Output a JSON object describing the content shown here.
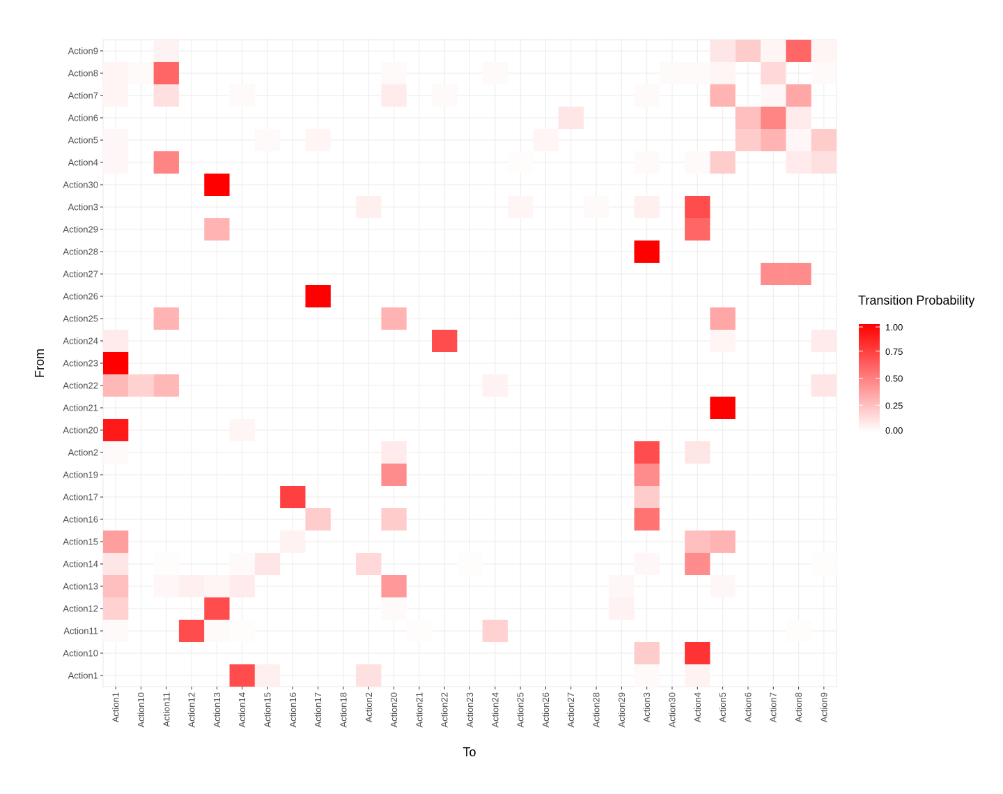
{
  "chart_data": {
    "type": "heatmap",
    "title": "",
    "xlabel": "To",
    "ylabel": "From",
    "x_categories": [
      "Action1",
      "Action10",
      "Action11",
      "Action12",
      "Action13",
      "Action14",
      "Action15",
      "Action16",
      "Action17",
      "Action18",
      "Action2",
      "Action20",
      "Action21",
      "Action22",
      "Action23",
      "Action24",
      "Action25",
      "Action26",
      "Action27",
      "Action28",
      "Action29",
      "Action3",
      "Action30",
      "Action4",
      "Action5",
      "Action6",
      "Action7",
      "Action8",
      "Action9"
    ],
    "y_categories": [
      "Action1",
      "Action10",
      "Action11",
      "Action12",
      "Action13",
      "Action14",
      "Action15",
      "Action16",
      "Action17",
      "Action19",
      "Action2",
      "Action20",
      "Action21",
      "Action22",
      "Action23",
      "Action24",
      "Action25",
      "Action26",
      "Action27",
      "Action28",
      "Action29",
      "Action3",
      "Action30",
      "Action4",
      "Action5",
      "Action6",
      "Action7",
      "Action8",
      "Action9"
    ],
    "cells": [
      {
        "from": "Action9",
        "to": "Action11",
        "value": 0.05
      },
      {
        "from": "Action9",
        "to": "Action5",
        "value": 0.1
      },
      {
        "from": "Action9",
        "to": "Action6",
        "value": 0.2
      },
      {
        "from": "Action9",
        "to": "Action7",
        "value": 0.04
      },
      {
        "from": "Action9",
        "to": "Action8",
        "value": 0.6
      },
      {
        "from": "Action9",
        "to": "Action9",
        "value": 0.04
      },
      {
        "from": "Action8",
        "to": "Action1",
        "value": 0.04
      },
      {
        "from": "Action8",
        "to": "Action10",
        "value": 0.02
      },
      {
        "from": "Action8",
        "to": "Action11",
        "value": 0.6
      },
      {
        "from": "Action8",
        "to": "Action20",
        "value": 0.02
      },
      {
        "from": "Action8",
        "to": "Action24",
        "value": 0.02
      },
      {
        "from": "Action8",
        "to": "Action30",
        "value": 0.02
      },
      {
        "from": "Action8",
        "to": "Action4",
        "value": 0.02
      },
      {
        "from": "Action8",
        "to": "Action5",
        "value": 0.04
      },
      {
        "from": "Action8",
        "to": "Action7",
        "value": 0.15
      },
      {
        "from": "Action8",
        "to": "Action9",
        "value": 0.02
      },
      {
        "from": "Action7",
        "to": "Action1",
        "value": 0.04
      },
      {
        "from": "Action7",
        "to": "Action11",
        "value": 0.12
      },
      {
        "from": "Action7",
        "to": "Action14",
        "value": 0.02
      },
      {
        "from": "Action7",
        "to": "Action20",
        "value": 0.08
      },
      {
        "from": "Action7",
        "to": "Action22",
        "value": 0.02
      },
      {
        "from": "Action7",
        "to": "Action3",
        "value": 0.02
      },
      {
        "from": "Action7",
        "to": "Action5",
        "value": 0.3
      },
      {
        "from": "Action7",
        "to": "Action7",
        "value": 0.03
      },
      {
        "from": "Action7",
        "to": "Action8",
        "value": 0.35
      },
      {
        "from": "Action6",
        "to": "Action27",
        "value": 0.1
      },
      {
        "from": "Action6",
        "to": "Action6",
        "value": 0.25
      },
      {
        "from": "Action6",
        "to": "Action7",
        "value": 0.48
      },
      {
        "from": "Action6",
        "to": "Action8",
        "value": 0.08
      },
      {
        "from": "Action5",
        "to": "Action1",
        "value": 0.03
      },
      {
        "from": "Action5",
        "to": "Action15",
        "value": 0.02
      },
      {
        "from": "Action5",
        "to": "Action17",
        "value": 0.04
      },
      {
        "from": "Action5",
        "to": "Action26",
        "value": 0.04
      },
      {
        "from": "Action5",
        "to": "Action6",
        "value": 0.2
      },
      {
        "from": "Action5",
        "to": "Action7",
        "value": 0.3
      },
      {
        "from": "Action5",
        "to": "Action8",
        "value": 0.03
      },
      {
        "from": "Action5",
        "to": "Action9",
        "value": 0.2
      },
      {
        "from": "Action4",
        "to": "Action1",
        "value": 0.03
      },
      {
        "from": "Action4",
        "to": "Action11",
        "value": 0.48
      },
      {
        "from": "Action4",
        "to": "Action25",
        "value": 0.01
      },
      {
        "from": "Action4",
        "to": "Action3",
        "value": 0.02
      },
      {
        "from": "Action4",
        "to": "Action4",
        "value": 0.02
      },
      {
        "from": "Action4",
        "to": "Action5",
        "value": 0.2
      },
      {
        "from": "Action4",
        "to": "Action8",
        "value": 0.08
      },
      {
        "from": "Action4",
        "to": "Action9",
        "value": 0.12
      },
      {
        "from": "Action30",
        "to": "Action13",
        "value": 1.0
      },
      {
        "from": "Action3",
        "to": "Action2",
        "value": 0.06
      },
      {
        "from": "Action3",
        "to": "Action25",
        "value": 0.04
      },
      {
        "from": "Action3",
        "to": "Action28",
        "value": 0.02
      },
      {
        "from": "Action3",
        "to": "Action3",
        "value": 0.06
      },
      {
        "from": "Action3",
        "to": "Action4",
        "value": 0.7
      },
      {
        "from": "Action29",
        "to": "Action13",
        "value": 0.3
      },
      {
        "from": "Action29",
        "to": "Action4",
        "value": 0.6
      },
      {
        "from": "Action28",
        "to": "Action3",
        "value": 1.0
      },
      {
        "from": "Action27",
        "to": "Action7",
        "value": 0.45
      },
      {
        "from": "Action27",
        "to": "Action8",
        "value": 0.45
      },
      {
        "from": "Action26",
        "to": "Action17",
        "value": 1.0
      },
      {
        "from": "Action25",
        "to": "Action11",
        "value": 0.3
      },
      {
        "from": "Action25",
        "to": "Action20",
        "value": 0.3
      },
      {
        "from": "Action25",
        "to": "Action5",
        "value": 0.35
      },
      {
        "from": "Action24",
        "to": "Action1",
        "value": 0.08
      },
      {
        "from": "Action24",
        "to": "Action22",
        "value": 0.7
      },
      {
        "from": "Action24",
        "to": "Action5",
        "value": 0.04
      },
      {
        "from": "Action24",
        "to": "Action9",
        "value": 0.08
      },
      {
        "from": "Action23",
        "to": "Action1",
        "value": 1.0
      },
      {
        "from": "Action22",
        "to": "Action1",
        "value": 0.28
      },
      {
        "from": "Action22",
        "to": "Action10",
        "value": 0.18
      },
      {
        "from": "Action22",
        "to": "Action11",
        "value": 0.28
      },
      {
        "from": "Action22",
        "to": "Action24",
        "value": 0.05
      },
      {
        "from": "Action22",
        "to": "Action9",
        "value": 0.1
      },
      {
        "from": "Action21",
        "to": "Action5",
        "value": 1.0
      },
      {
        "from": "Action20",
        "to": "Action1",
        "value": 0.9
      },
      {
        "from": "Action20",
        "to": "Action14",
        "value": 0.04
      },
      {
        "from": "Action2",
        "to": "Action1",
        "value": 0.02
      },
      {
        "from": "Action2",
        "to": "Action20",
        "value": 0.08
      },
      {
        "from": "Action2",
        "to": "Action3",
        "value": 0.7
      },
      {
        "from": "Action2",
        "to": "Action4",
        "value": 0.1
      },
      {
        "from": "Action19",
        "to": "Action20",
        "value": 0.45
      },
      {
        "from": "Action19",
        "to": "Action3",
        "value": 0.45
      },
      {
        "from": "Action17",
        "to": "Action16",
        "value": 0.75
      },
      {
        "from": "Action17",
        "to": "Action3",
        "value": 0.2
      },
      {
        "from": "Action16",
        "to": "Action17",
        "value": 0.2
      },
      {
        "from": "Action16",
        "to": "Action20",
        "value": 0.2
      },
      {
        "from": "Action16",
        "to": "Action3",
        "value": 0.55
      },
      {
        "from": "Action15",
        "to": "Action1",
        "value": 0.38
      },
      {
        "from": "Action15",
        "to": "Action16",
        "value": 0.05
      },
      {
        "from": "Action15",
        "to": "Action4",
        "value": 0.25
      },
      {
        "from": "Action15",
        "to": "Action5",
        "value": 0.3
      },
      {
        "from": "Action14",
        "to": "Action1",
        "value": 0.1
      },
      {
        "from": "Action14",
        "to": "Action11",
        "value": 0.01
      },
      {
        "from": "Action14",
        "to": "Action14",
        "value": 0.02
      },
      {
        "from": "Action14",
        "to": "Action15",
        "value": 0.1
      },
      {
        "from": "Action14",
        "to": "Action2",
        "value": 0.15
      },
      {
        "from": "Action14",
        "to": "Action23",
        "value": 0.01
      },
      {
        "from": "Action14",
        "to": "Action3",
        "value": 0.03
      },
      {
        "from": "Action14",
        "to": "Action4",
        "value": 0.45
      },
      {
        "from": "Action14",
        "to": "Action9",
        "value": 0.01
      },
      {
        "from": "Action13",
        "to": "Action1",
        "value": 0.25
      },
      {
        "from": "Action13",
        "to": "Action11",
        "value": 0.03
      },
      {
        "from": "Action13",
        "to": "Action12",
        "value": 0.06
      },
      {
        "from": "Action13",
        "to": "Action13",
        "value": 0.04
      },
      {
        "from": "Action13",
        "to": "Action14",
        "value": 0.08
      },
      {
        "from": "Action13",
        "to": "Action20",
        "value": 0.4
      },
      {
        "from": "Action13",
        "to": "Action29",
        "value": 0.03
      },
      {
        "from": "Action13",
        "to": "Action5",
        "value": 0.03
      },
      {
        "from": "Action12",
        "to": "Action1",
        "value": 0.18
      },
      {
        "from": "Action12",
        "to": "Action13",
        "value": 0.7
      },
      {
        "from": "Action12",
        "to": "Action20",
        "value": 0.02
      },
      {
        "from": "Action12",
        "to": "Action29",
        "value": 0.05
      },
      {
        "from": "Action11",
        "to": "Action1",
        "value": 0.02
      },
      {
        "from": "Action11",
        "to": "Action12",
        "value": 0.7
      },
      {
        "from": "Action11",
        "to": "Action13",
        "value": 0.02
      },
      {
        "from": "Action11",
        "to": "Action14",
        "value": 0.01
      },
      {
        "from": "Action11",
        "to": "Action21",
        "value": 0.01
      },
      {
        "from": "Action11",
        "to": "Action24",
        "value": 0.18
      },
      {
        "from": "Action11",
        "to": "Action8",
        "value": 0.01
      },
      {
        "from": "Action10",
        "to": "Action3",
        "value": 0.2
      },
      {
        "from": "Action10",
        "to": "Action4",
        "value": 0.8
      },
      {
        "from": "Action1",
        "to": "Action14",
        "value": 0.7
      },
      {
        "from": "Action1",
        "to": "Action15",
        "value": 0.06
      },
      {
        "from": "Action1",
        "to": "Action2",
        "value": 0.12
      },
      {
        "from": "Action1",
        "to": "Action3",
        "value": 0.02
      },
      {
        "from": "Action1",
        "to": "Action4",
        "value": 0.05
      }
    ],
    "grid": true,
    "legend": {
      "title": "Transition Probability",
      "placement": "right",
      "ticks": [
        "1.00",
        "0.75",
        "0.50",
        "0.25",
        "0.00"
      ],
      "tick_values": [
        1.0,
        0.75,
        0.5,
        0.25,
        0.0
      ],
      "low_color": "#ffffff",
      "high_color": "#ff0000"
    }
  }
}
